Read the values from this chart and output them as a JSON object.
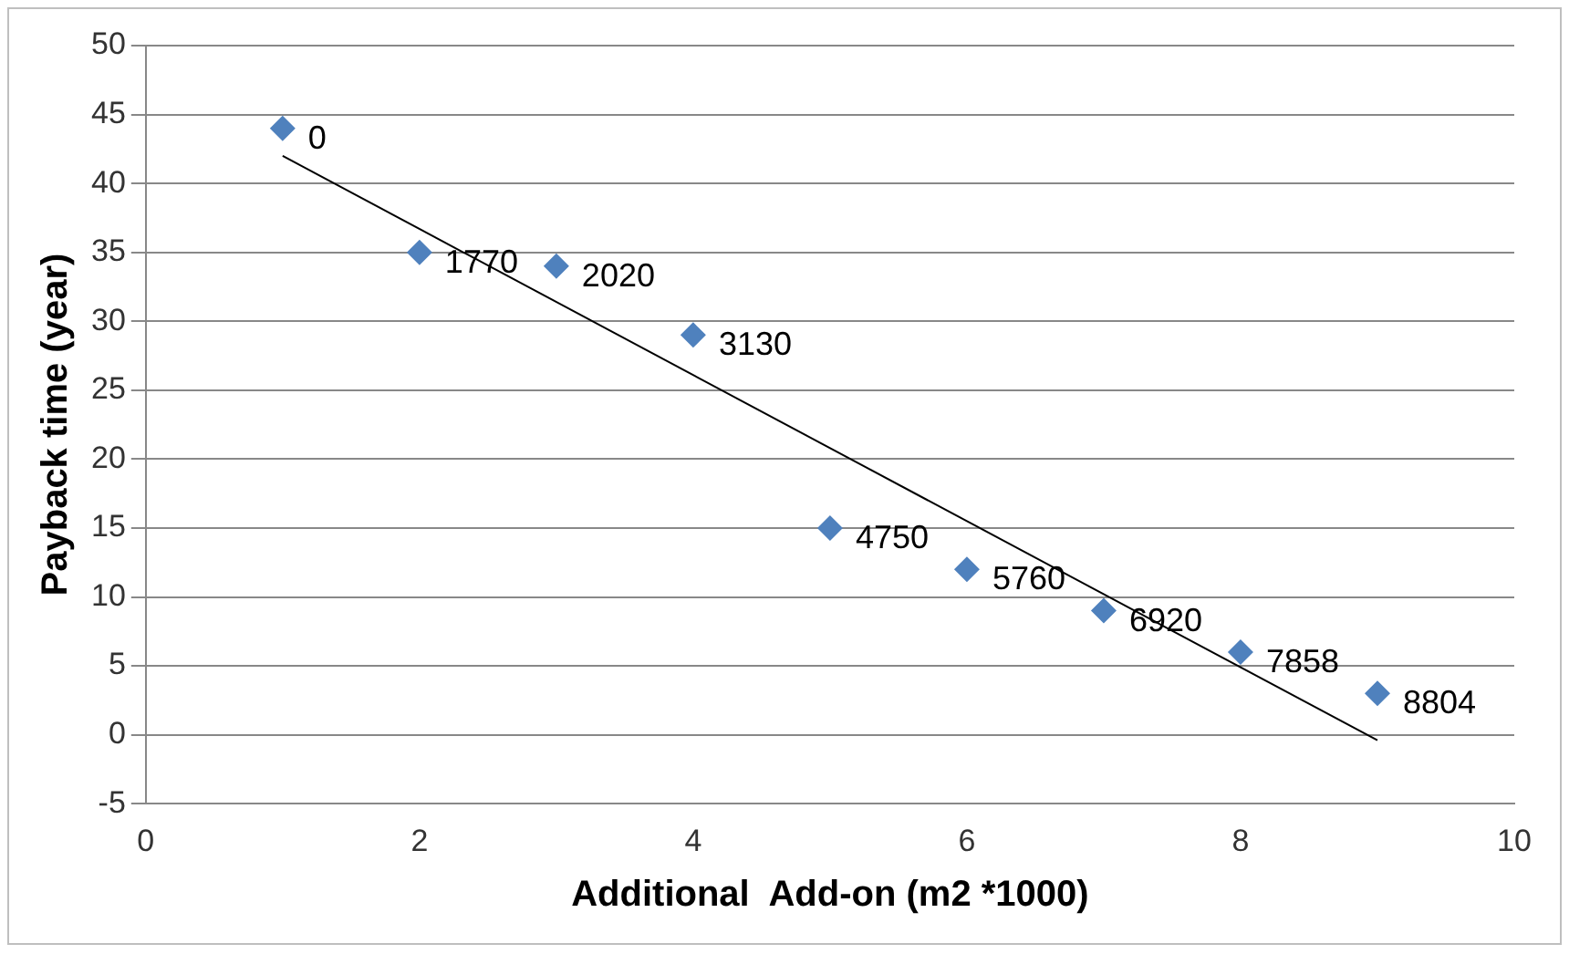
{
  "chart_data": {
    "type": "scatter",
    "xlabel": "Additional  Add-on (m2 *1000)",
    "ylabel": "Payback time (year)",
    "xlim": [
      0,
      10
    ],
    "xticks": [
      0,
      2,
      4,
      6,
      8,
      10
    ],
    "ylim": [
      -5,
      50
    ],
    "yticks": [
      -5,
      0,
      5,
      10,
      15,
      20,
      25,
      30,
      35,
      40,
      45,
      50
    ],
    "grid": "y",
    "legend": false,
    "marker": "diamond",
    "series": [
      {
        "type": "scatter",
        "color": "#4f81bd",
        "x": [
          1,
          2,
          3,
          4,
          5,
          6,
          7,
          8,
          9
        ],
        "values": [
          44,
          35,
          34,
          29,
          15,
          12,
          9,
          6,
          3
        ]
      },
      {
        "type": "line",
        "color": "#000000",
        "x": [
          1,
          9
        ],
        "values": [
          42,
          -0.4
        ],
        "marker": "none"
      }
    ],
    "annotations": [
      {
        "text": "0",
        "x": 1,
        "y": 44
      },
      {
        "text": "1770",
        "x": 2,
        "y": 35
      },
      {
        "text": "2020",
        "x": 3,
        "y": 34
      },
      {
        "text": "3130",
        "x": 4,
        "y": 29
      },
      {
        "text": "4750",
        "x": 5,
        "y": 15
      },
      {
        "text": "5760",
        "x": 6,
        "y": 12
      },
      {
        "text": "6920",
        "x": 7,
        "y": 9
      },
      {
        "text": "7858",
        "x": 8,
        "y": 6
      },
      {
        "text": "8804",
        "x": 9,
        "y": 3
      }
    ]
  }
}
